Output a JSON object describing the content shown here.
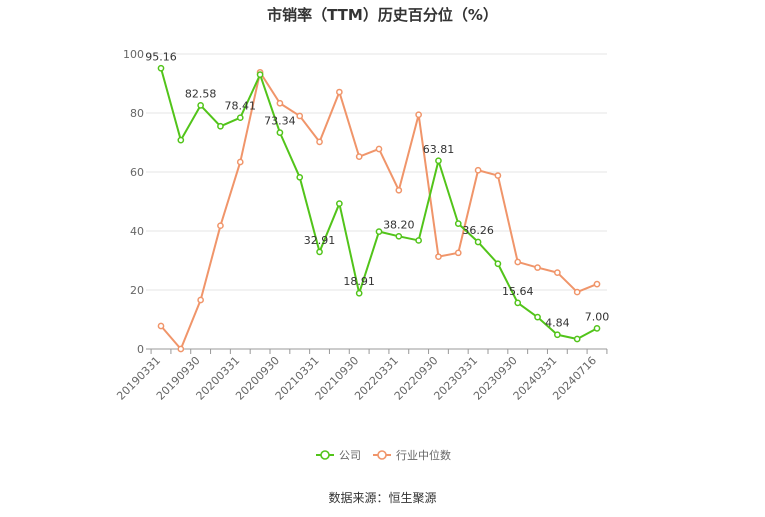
{
  "title": "市销率（TTM）历史百分位（%）",
  "source": "数据来源：恒生聚源",
  "chart_data": {
    "type": "line",
    "ylim": [
      0,
      100
    ],
    "yticks": [
      0,
      20,
      40,
      60,
      80,
      100
    ],
    "grid": true,
    "legend": "bottom-center",
    "x_tick_labels": [
      "20190331",
      "20190930",
      "20200331",
      "20200930",
      "20210331",
      "20210930",
      "20220331",
      "20220930",
      "20230331",
      "20230930",
      "20240331",
      "20240716"
    ],
    "x": [
      "20190331",
      "20190630",
      "20190930",
      "20191231",
      "20200331",
      "20200630",
      "20200930",
      "20201231",
      "20210331",
      "20210630",
      "20210930",
      "20211231",
      "20220331",
      "20220630",
      "20220930",
      "20221231",
      "20230331",
      "20230630",
      "20230930",
      "20231231",
      "20240331",
      "20240630",
      "20240716"
    ],
    "series": [
      {
        "name": "公司",
        "color": "#52c41a",
        "values": [
          95.16,
          70.8,
          82.58,
          75.5,
          78.41,
          93.0,
          73.34,
          58.2,
          32.91,
          49.3,
          18.91,
          39.8,
          38.2,
          36.8,
          63.81,
          42.5,
          36.26,
          28.9,
          15.64,
          10.8,
          4.84,
          3.4,
          7.0
        ],
        "labels": {
          "0": "95.16",
          "2": "82.58",
          "4": "78.41",
          "6": "73.34",
          "8": "32.91",
          "10": "18.91",
          "12": "38.20",
          "14": "63.81",
          "16": "36.26",
          "18": "15.64",
          "20": "4.84",
          "22": "7.00"
        }
      },
      {
        "name": "行业中位数",
        "color": "#f0956a",
        "values": [
          7.8,
          0.0,
          16.6,
          41.8,
          63.4,
          93.8,
          83.3,
          79.0,
          70.2,
          87.1,
          65.2,
          67.8,
          53.8,
          79.4,
          31.3,
          32.6,
          60.6,
          58.8,
          29.5,
          27.6,
          25.9,
          19.3,
          22.0
        ]
      }
    ]
  }
}
